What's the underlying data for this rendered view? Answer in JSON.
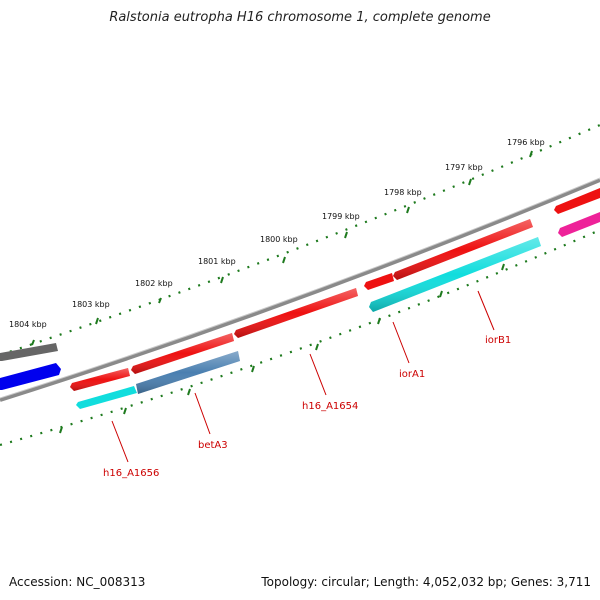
{
  "title": "Ralstonia eutropha H16 chromosome 1, complete genome",
  "footer": {
    "accession": "Accession: NC_008313",
    "stats": "Topology: circular; Length: 4,052,032 bp; Genes: 3,711"
  },
  "colors": {
    "backbone": "#8a8a8a",
    "tick": "#1e7a1e",
    "label": "#cc0000",
    "cds": "#ee1111",
    "gene_cyan": "#11dddd",
    "gene_blue": "#0000ee",
    "gene_steel": "#4a7fb0",
    "gene_gray": "#666666",
    "gene_magenta": "#ee2299"
  },
  "ruler": {
    "labels": [
      "1804 kbp",
      "1803 kbp",
      "1802 kbp",
      "1801 kbp",
      "1800 kbp",
      "1799 kbp",
      "1798 kbp",
      "1797 kbp",
      "1796 kbp"
    ]
  },
  "genes": {
    "labels": [
      "h16_A1656",
      "betA3",
      "h16_A1654",
      "iorA1",
      "iorB1"
    ]
  }
}
